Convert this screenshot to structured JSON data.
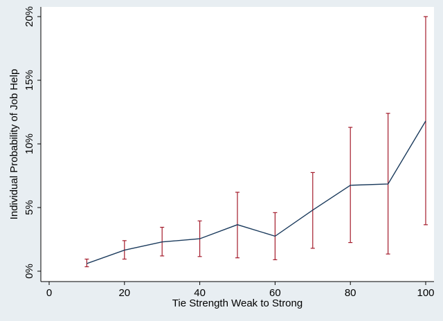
{
  "chart_data": {
    "type": "line",
    "xlabel": "Tie Strength Weak to Strong",
    "ylabel": "Individual Probability of Job Help",
    "xlim": [
      0,
      100
    ],
    "ylim": [
      0,
      20
    ],
    "x_ticks": [
      0,
      20,
      40,
      60,
      80,
      100
    ],
    "y_ticks": [
      0,
      5,
      10,
      15,
      20
    ],
    "y_tick_labels": [
      "0%",
      "5%",
      "10%",
      "15%",
      "20%"
    ],
    "grid": false,
    "legend": "none",
    "line_color": "#1a3a5c",
    "error_bar_color": "#a31a2a",
    "plot_background": "#ffffff",
    "outer_background": "#e8eef2",
    "series": [
      {
        "x": [
          10,
          20,
          30,
          40,
          50,
          60,
          70,
          80,
          90,
          100
        ],
        "y": [
          0.6,
          1.65,
          2.3,
          2.55,
          3.65,
          2.75,
          4.8,
          6.75,
          6.85,
          11.8
        ],
        "lower": [
          0.35,
          0.95,
          1.2,
          1.15,
          1.05,
          0.9,
          1.8,
          2.25,
          1.35,
          3.65
        ],
        "upper": [
          0.95,
          2.4,
          3.45,
          3.95,
          6.2,
          4.6,
          7.75,
          11.3,
          12.4,
          20.0
        ]
      }
    ]
  }
}
